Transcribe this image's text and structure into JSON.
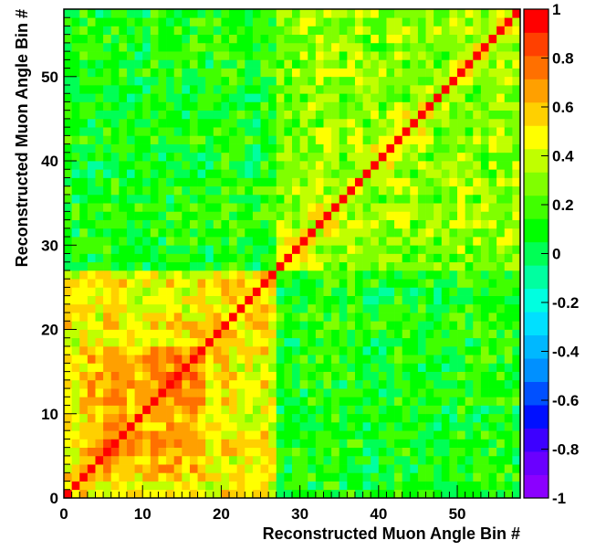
{
  "chart_data": {
    "type": "heatmap",
    "title": "",
    "xlabel": "Reconstructed Muon Angle Bin #",
    "ylabel": "Reconstructed Muon Angle Bin #",
    "nbins": 58,
    "xlim": [
      0,
      58
    ],
    "ylim": [
      0,
      58
    ],
    "x_ticks": [
      0,
      10,
      20,
      30,
      40,
      50
    ],
    "y_ticks": [
      0,
      10,
      20,
      30,
      40,
      50
    ],
    "zlim": [
      -1,
      1
    ],
    "colorbar_ticks": [
      1,
      0.8,
      0.6,
      0.4,
      0.2,
      0,
      -0.2,
      -0.4,
      -0.6,
      -0.8,
      -1
    ],
    "palette": [
      "#8b00ff",
      "#6a00ff",
      "#3d00ff",
      "#0010ff",
      "#0050ff",
      "#0090ff",
      "#00b8ff",
      "#00e0ff",
      "#00ffe0",
      "#00ffa0",
      "#00ff55",
      "#00ff00",
      "#40ff00",
      "#80ff00",
      "#c0ff00",
      "#ffff00",
      "#ffd000",
      "#ffa000",
      "#ff7000",
      "#ff4000",
      "#ff0000"
    ],
    "structure": {
      "diagonal_value": 1.0,
      "block_low_range": [
        0,
        26
      ],
      "block_low_center": 0.5,
      "block_low_core_range": [
        3,
        17
      ],
      "block_low_core_value": 0.68,
      "block_high_range": [
        27,
        57
      ],
      "block_high_center": 0.32,
      "cross_block_center": 0.12,
      "noise_amplitude": 0.16
    }
  }
}
